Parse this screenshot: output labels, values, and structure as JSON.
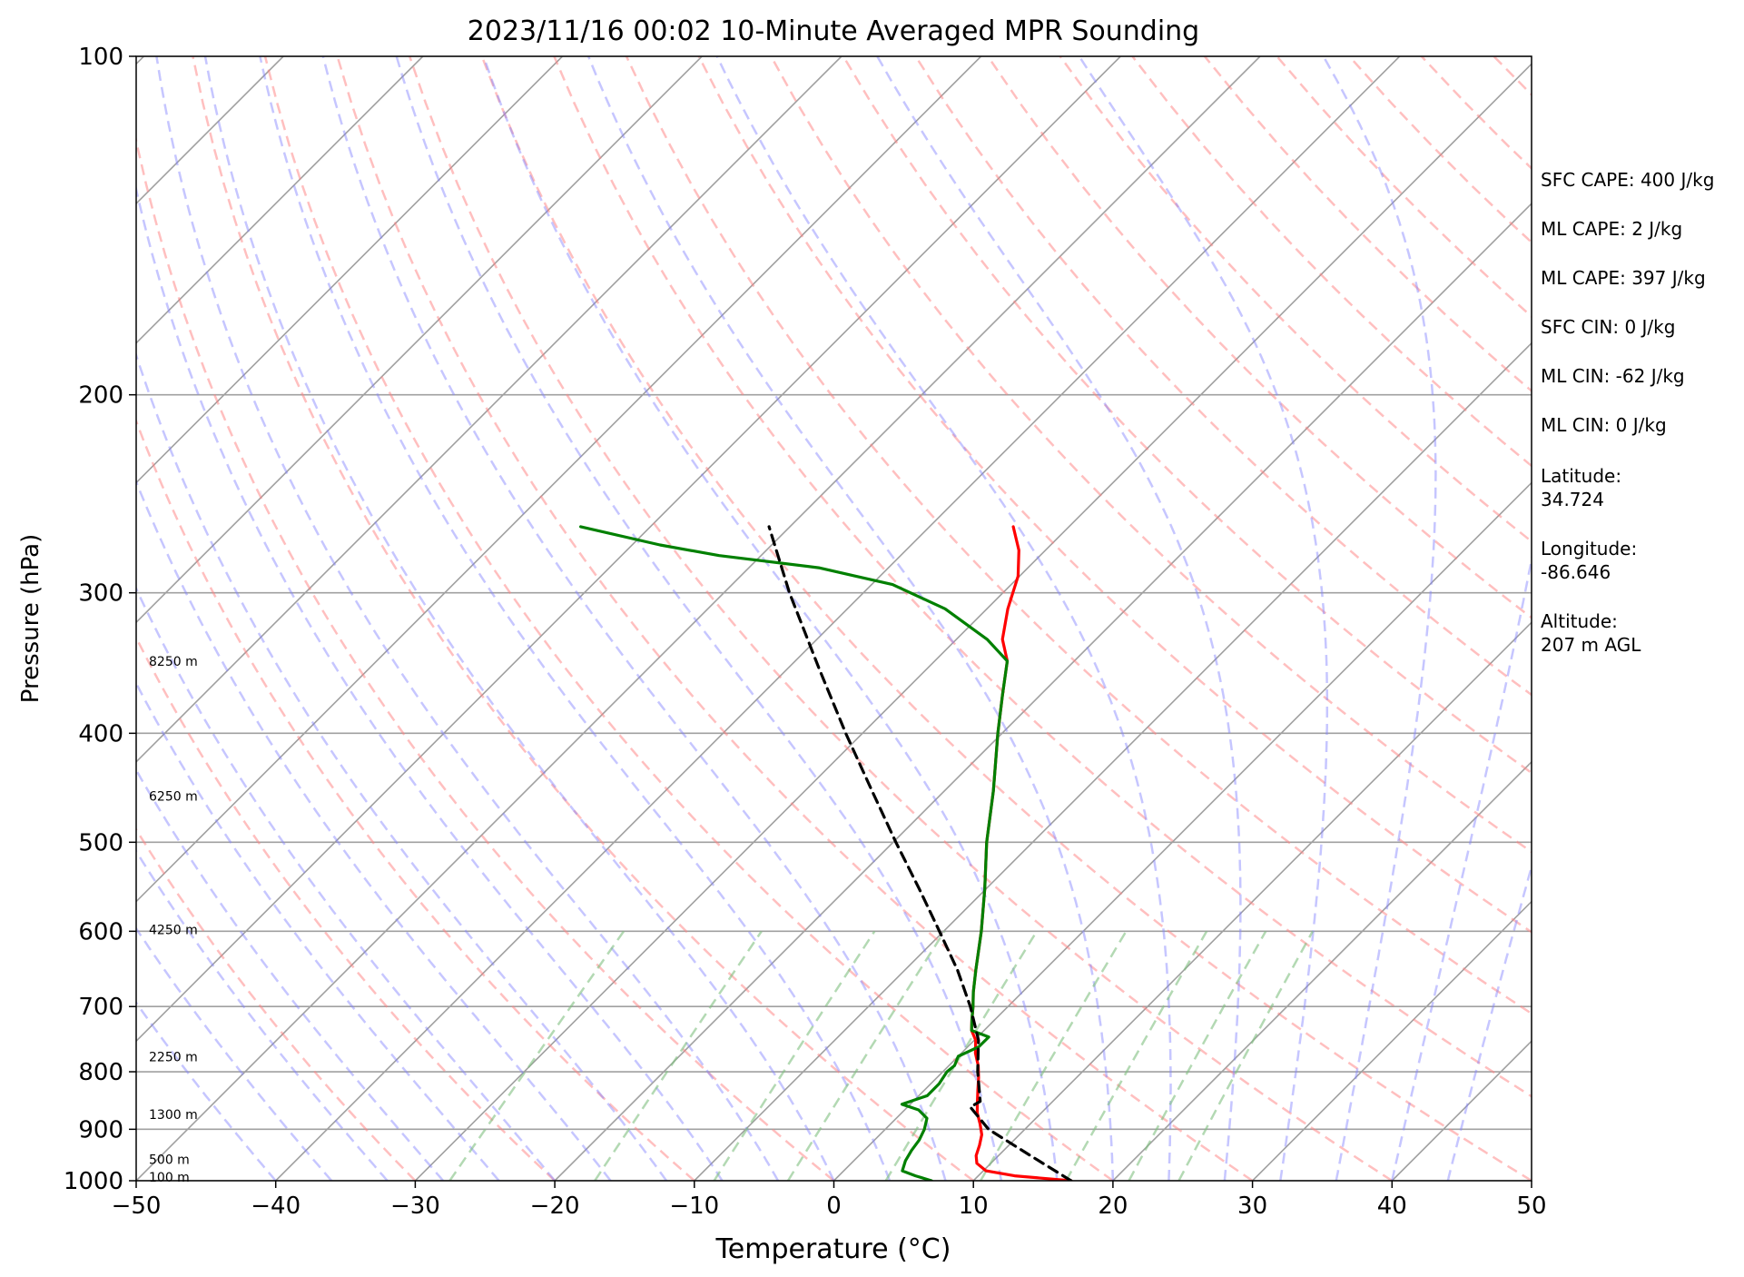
{
  "chart_data": {
    "type": "line",
    "title": "2023/11/16 00:02 10-Minute Averaged MPR Sounding",
    "xlabel": "Temperature (°C)",
    "ylabel": "Pressure (hPa)",
    "x_ticks": [
      -50,
      -40,
      -30,
      -20,
      -10,
      0,
      10,
      20,
      30,
      40,
      50
    ],
    "y_ticks": [
      100,
      200,
      300,
      400,
      500,
      600,
      700,
      800,
      900,
      1000
    ],
    "xlim": [
      -50,
      50
    ],
    "ylim": [
      1000,
      100
    ],
    "y_scale": "log",
    "skew_x": true,
    "grid": true,
    "series": [
      {
        "color": "#ff0000",
        "points": [
          [
            1000,
            17
          ],
          [
            990,
            12.6
          ],
          [
            980,
            10.2
          ],
          [
            965,
            9.0
          ],
          [
            950,
            8.4
          ],
          [
            930,
            7.9
          ],
          [
            910,
            7.3
          ],
          [
            890,
            6.4
          ],
          [
            870,
            5.4
          ],
          [
            850,
            4.6
          ],
          [
            830,
            3.8
          ],
          [
            810,
            3.0
          ],
          [
            790,
            2.1
          ],
          [
            770,
            1.0
          ],
          [
            750,
            0.1
          ],
          [
            735,
            -0.9
          ],
          [
            720,
            -1.6
          ],
          [
            700,
            -2.5
          ],
          [
            680,
            -3.5
          ],
          [
            650,
            -4.9
          ],
          [
            600,
            -7.3
          ],
          [
            550,
            -10.1
          ],
          [
            500,
            -13.3
          ],
          [
            450,
            -16.5
          ],
          [
            400,
            -20.3
          ],
          [
            370,
            -22.7
          ],
          [
            345,
            -24.8
          ],
          [
            330,
            -26.7
          ],
          [
            310,
            -28.5
          ],
          [
            290,
            -30.1
          ],
          [
            275,
            -31.9
          ],
          [
            262,
            -34.0
          ]
        ]
      },
      {
        "color": "#008000",
        "points": [
          [
            1000,
            7
          ],
          [
            990,
            5.5
          ],
          [
            980,
            4.2
          ],
          [
            960,
            3.7
          ],
          [
            940,
            3.4
          ],
          [
            920,
            3.2
          ],
          [
            900,
            2.8
          ],
          [
            880,
            2.2
          ],
          [
            865,
            1.0
          ],
          [
            855,
            -0.6
          ],
          [
            850,
            -0.2
          ],
          [
            840,
            0.6
          ],
          [
            820,
            0.6
          ],
          [
            800,
            0.3
          ],
          [
            790,
            0.4
          ],
          [
            775,
            0.0
          ],
          [
            760,
            0.8
          ],
          [
            745,
            0.8
          ],
          [
            735,
            -0.9
          ],
          [
            720,
            -1.6
          ],
          [
            700,
            -2.5
          ],
          [
            680,
            -3.5
          ],
          [
            650,
            -4.9
          ],
          [
            600,
            -7.3
          ],
          [
            550,
            -10.1
          ],
          [
            500,
            -13.3
          ],
          [
            450,
            -16.5
          ],
          [
            400,
            -20.3
          ],
          [
            370,
            -22.7
          ],
          [
            345,
            -24.8
          ],
          [
            330,
            -27.8
          ],
          [
            310,
            -33.0
          ],
          [
            295,
            -38.5
          ],
          [
            285,
            -45.0
          ],
          [
            278,
            -53.0
          ],
          [
            272,
            -58.0
          ],
          [
            262,
            -65.0
          ]
        ]
      },
      {
        "color": "#000000",
        "dashed": true,
        "points": [
          [
            1000,
            17
          ],
          [
            950,
            12.3
          ],
          [
            900,
            7.4
          ],
          [
            860,
            4.5
          ],
          [
            850,
            4.8
          ],
          [
            800,
            2.5
          ],
          [
            750,
            0.3
          ],
          [
            700,
            -2.7
          ],
          [
            650,
            -6.2
          ],
          [
            600,
            -10.3
          ],
          [
            550,
            -14.8
          ],
          [
            500,
            -19.8
          ],
          [
            450,
            -25.2
          ],
          [
            400,
            -31.2
          ],
          [
            350,
            -37.8
          ],
          [
            300,
            -45.3
          ],
          [
            262,
            -51.5
          ]
        ]
      }
    ],
    "height_labels": [
      {
        "text": "8250 m",
        "p": 345
      },
      {
        "text": "6250 m",
        "p": 455
      },
      {
        "text": "4250 m",
        "p": 598
      },
      {
        "text": "2250 m",
        "p": 776
      },
      {
        "text": "1300 m",
        "p": 873
      },
      {
        "text": "500 m",
        "p": 957
      },
      {
        "text": "100 m",
        "p": 993
      }
    ],
    "annotations": [
      "SFC CAPE: 400 J/kg",
      "ML CAPE: 2 J/kg",
      "ML CAPE: 397 J/kg",
      "SFC CIN: 0 J/kg",
      "ML CIN: -62 J/kg",
      "ML CIN: 0 J/kg",
      "Latitude:\n34.724",
      "Longitude:\n-86.646",
      "Altitude:\n207 m AGL"
    ],
    "colors": {
      "temperature": "#ff0000",
      "dewpoint": "#008000",
      "parcel": "#000000",
      "dry_adiabats": "#ff8080",
      "moist_adiabats": "#8080ff",
      "mixing_ratio": "#80c080",
      "isotherms": "#a0a0a0"
    }
  }
}
